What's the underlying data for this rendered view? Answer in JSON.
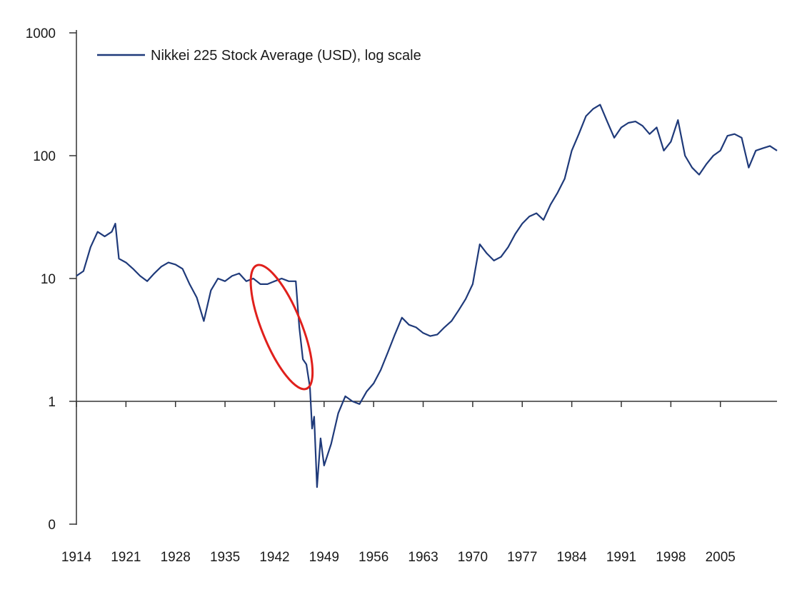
{
  "chart_data": {
    "type": "line",
    "title": "",
    "xlabel": "",
    "ylabel": "",
    "yscale": "log",
    "ylim": [
      0.1,
      1000
    ],
    "xlim": [
      1914,
      2013
    ],
    "grid": false,
    "legend_position": "top-left",
    "y_ticks": [
      {
        "value": 1000,
        "label": "1000"
      },
      {
        "value": 100,
        "label": "100"
      },
      {
        "value": 10,
        "label": "10"
      },
      {
        "value": 1,
        "label": "1"
      },
      {
        "value": 0.1,
        "label": "0"
      }
    ],
    "x_ticks": [
      "1914",
      "1921",
      "1928",
      "1935",
      "1942",
      "1949",
      "1956",
      "1963",
      "1970",
      "1977",
      "1984",
      "1991",
      "1998",
      "2005"
    ],
    "series": [
      {
        "name": "Nikkei 225 Stock Average (USD), log scale",
        "color": "#1f3a7a",
        "x": [
          1914,
          1915,
          1916,
          1917,
          1918,
          1919,
          1919.5,
          1920,
          1921,
          1922,
          1923,
          1924,
          1925,
          1926,
          1927,
          1928,
          1929,
          1930,
          1931,
          1932,
          1933,
          1934,
          1935,
          1936,
          1937,
          1938,
          1939,
          1940,
          1941,
          1942,
          1943,
          1944,
          1945,
          1945.5,
          1946,
          1946.5,
          1947,
          1947.3,
          1947.6,
          1948,
          1948.5,
          1949,
          1950,
          1951,
          1952,
          1953,
          1954,
          1955,
          1956,
          1957,
          1958,
          1959,
          1960,
          1961,
          1962,
          1963,
          1964,
          1965,
          1966,
          1967,
          1968,
          1969,
          1970,
          1971,
          1972,
          1973,
          1974,
          1975,
          1976,
          1977,
          1978,
          1979,
          1980,
          1981,
          1982,
          1983,
          1984,
          1985,
          1986,
          1987,
          1988,
          1989,
          1990,
          1991,
          1992,
          1993,
          1994,
          1995,
          1996,
          1997,
          1998,
          1999,
          2000,
          2001,
          2002,
          2003,
          2004,
          2005,
          2006,
          2007,
          2008,
          2009,
          2010,
          2011,
          2012,
          2013
        ],
        "values": [
          10.5,
          11.5,
          18,
          24,
          22,
          24,
          28,
          14.5,
          13.5,
          12,
          10.5,
          9.5,
          11,
          12.5,
          13.5,
          13,
          12,
          9,
          7,
          4.5,
          8,
          10,
          9.5,
          10.5,
          11,
          9.5,
          10,
          9,
          9,
          9.5,
          10,
          9.5,
          9.5,
          4,
          2.2,
          2,
          1.3,
          0.6,
          0.75,
          0.2,
          0.5,
          0.3,
          0.45,
          0.8,
          1.1,
          1.0,
          0.95,
          1.2,
          1.4,
          1.8,
          2.5,
          3.5,
          4.8,
          4.2,
          4.0,
          3.6,
          3.4,
          3.5,
          4.0,
          4.5,
          5.5,
          6.8,
          9.0,
          19,
          16,
          14,
          15,
          18,
          23,
          28,
          32,
          34,
          30,
          40,
          50,
          65,
          110,
          150,
          210,
          240,
          260,
          190,
          140,
          170,
          185,
          190,
          175,
          150,
          170,
          110,
          130,
          195,
          100,
          80,
          70,
          85,
          100,
          110,
          145,
          150,
          140,
          80,
          110,
          115,
          120,
          110
        ]
      }
    ],
    "annotations": [
      {
        "type": "ellipse",
        "color": "#e0201c",
        "x_range": [
          1938.5,
          1947.5
        ],
        "y_range": [
          1.2,
          13.5
        ],
        "note": "highlight"
      }
    ]
  }
}
